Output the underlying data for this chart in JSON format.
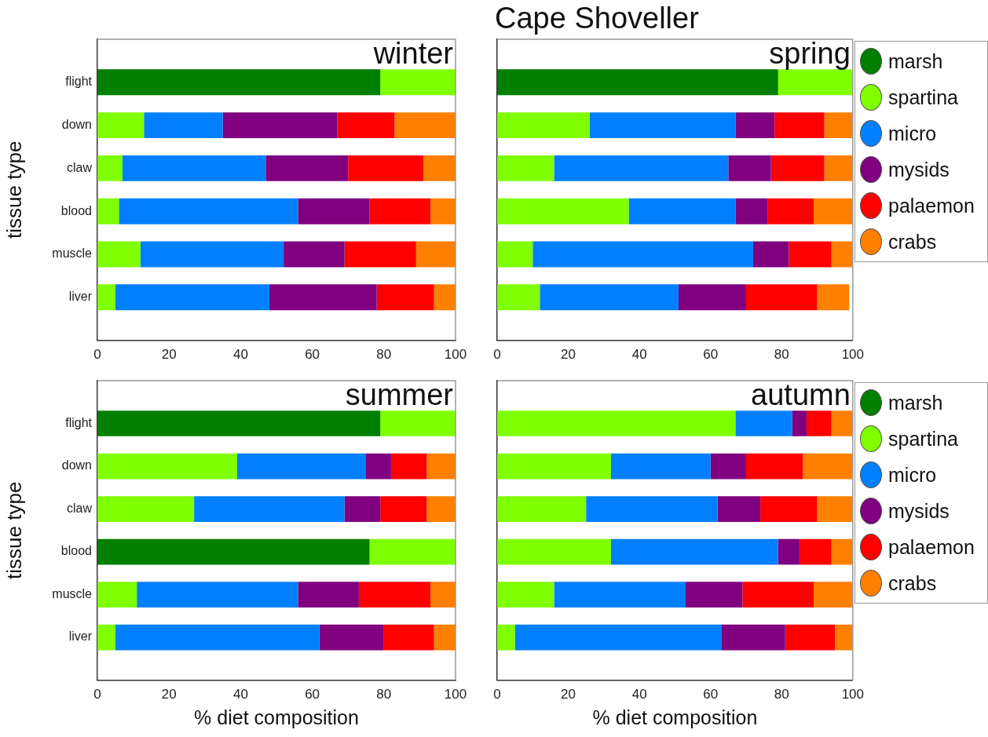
{
  "chart_data": [
    {
      "type": "bar",
      "orientation": "horizontal",
      "stacked": true,
      "title": "winter",
      "ylabel": "tissue type",
      "categories": [
        null,
        "flight",
        "down",
        "claw",
        "blood",
        "muscle",
        "liver",
        null
      ],
      "xlim": [
        0,
        100
      ],
      "xticks": [
        0,
        20,
        40,
        60,
        80,
        100
      ],
      "legend": false,
      "series": [
        {
          "color": "#007f00",
          "values": [
            null,
            79,
            0,
            0,
            0,
            0,
            0,
            null
          ]
        },
        {
          "color": "#7fff00",
          "values": [
            null,
            21,
            13,
            7,
            6,
            12,
            5,
            null
          ]
        },
        {
          "color": "#0080ff",
          "values": [
            null,
            0,
            22,
            40,
            50,
            40,
            43,
            null
          ]
        },
        {
          "color": "#800080",
          "values": [
            null,
            0,
            32,
            23,
            20,
            17,
            30,
            null
          ]
        },
        {
          "color": "#ff0000",
          "values": [
            null,
            0,
            16,
            21,
            17,
            20,
            16,
            null
          ]
        },
        {
          "color": "#ff8000",
          "values": [
            null,
            0,
            17,
            9,
            7,
            11,
            6,
            null
          ]
        }
      ]
    },
    {
      "type": "bar",
      "orientation": "horizontal",
      "stacked": true,
      "title": "spring",
      "annotations": [
        "Cape Shoveller"
      ],
      "categories": [
        null,
        null,
        null,
        null,
        null,
        null,
        null,
        null
      ],
      "xlim": [
        0,
        100
      ],
      "xticks": [
        0,
        20,
        40,
        60,
        80,
        100
      ],
      "legend": "right",
      "series": [
        {
          "name": "marsh",
          "color": "#007f00",
          "values": [
            null,
            79,
            0,
            0,
            0,
            0,
            0,
            null
          ]
        },
        {
          "name": "spartina",
          "color": "#7fff00",
          "values": [
            null,
            21,
            26,
            16,
            37,
            10,
            12,
            null
          ]
        },
        {
          "name": "micro",
          "color": "#0080ff",
          "values": [
            null,
            0,
            41,
            49,
            30,
            62,
            39,
            null
          ]
        },
        {
          "name": "mysids",
          "color": "#800080",
          "values": [
            null,
            0,
            11,
            12,
            9,
            10,
            19,
            null
          ]
        },
        {
          "name": "palaemon",
          "color": "#ff0000",
          "values": [
            null,
            0,
            14,
            15,
            13,
            12,
            20,
            null
          ]
        },
        {
          "name": "crabs",
          "color": "#ff8000",
          "values": [
            null,
            0,
            8,
            8,
            11,
            6,
            9,
            null
          ]
        }
      ]
    },
    {
      "type": "bar",
      "orientation": "horizontal",
      "stacked": true,
      "title": "summer",
      "xlabel": "% diet composition",
      "ylabel": "tissue type",
      "categories": [
        null,
        "flight",
        "down",
        "claw",
        "blood",
        "muscle",
        "liver",
        null
      ],
      "xlim": [
        0,
        100
      ],
      "xticks": [
        0,
        20,
        40,
        60,
        80,
        100
      ],
      "legend": false,
      "series": [
        {
          "color": "#007f00",
          "values": [
            null,
            79,
            0,
            0,
            76,
            0,
            0,
            null
          ]
        },
        {
          "color": "#7fff00",
          "values": [
            null,
            21,
            39,
            27,
            24,
            11,
            5,
            null
          ]
        },
        {
          "color": "#0080ff",
          "values": [
            null,
            0,
            36,
            42,
            0,
            45,
            57,
            null
          ]
        },
        {
          "color": "#800080",
          "values": [
            null,
            0,
            7,
            10,
            0,
            17,
            18,
            null
          ]
        },
        {
          "color": "#ff0000",
          "values": [
            null,
            0,
            10,
            13,
            0,
            20,
            14,
            null
          ]
        },
        {
          "color": "#ff8000",
          "values": [
            null,
            0,
            8,
            8,
            0,
            7,
            6,
            null
          ]
        }
      ]
    },
    {
      "type": "bar",
      "orientation": "horizontal",
      "stacked": true,
      "title": "autumn",
      "xlabel": "% diet composition",
      "categories": [
        null,
        null,
        null,
        null,
        null,
        null,
        null,
        null
      ],
      "xlim": [
        0,
        100
      ],
      "xticks": [
        0,
        20,
        40,
        60,
        80,
        100
      ],
      "legend": "right",
      "series": [
        {
          "name": "marsh",
          "color": "#007f00",
          "values": [
            null,
            0,
            0,
            0,
            0,
            0,
            0,
            null
          ]
        },
        {
          "name": "spartina",
          "color": "#7fff00",
          "values": [
            null,
            67,
            32,
            25,
            32,
            16,
            5,
            null
          ]
        },
        {
          "name": "micro",
          "color": "#0080ff",
          "values": [
            null,
            16,
            28,
            37,
            47,
            37,
            58,
            null
          ]
        },
        {
          "name": "mysids",
          "color": "#800080",
          "values": [
            null,
            4,
            10,
            12,
            6,
            16,
            18,
            null
          ]
        },
        {
          "name": "palaemon",
          "color": "#ff0000",
          "values": [
            null,
            7,
            16,
            16,
            9,
            20,
            14,
            null
          ]
        },
        {
          "name": "crabs",
          "color": "#ff8000",
          "values": [
            null,
            6,
            14,
            10,
            6,
            11,
            5,
            null
          ]
        }
      ]
    }
  ]
}
